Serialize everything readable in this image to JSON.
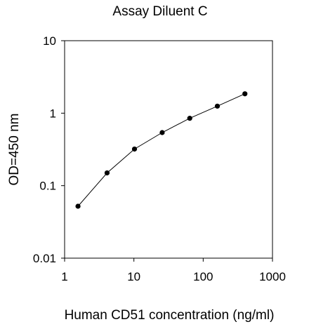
{
  "chart_data": {
    "type": "line",
    "title": "Assay Diluent C",
    "xlabel": "Human CD51 concentration (ng/ml)",
    "ylabel": "OD=450 nm",
    "xscale": "log",
    "yscale": "log",
    "xlim": [
      1,
      1000
    ],
    "ylim": [
      0.01,
      10
    ],
    "x_ticks": [
      1,
      10,
      100,
      1000
    ],
    "x_tick_labels": [
      "1",
      "10",
      "100",
      "1000"
    ],
    "y_ticks": [
      0.01,
      0.1,
      1,
      10
    ],
    "y_tick_labels": [
      "0.01",
      "0.1",
      "1",
      "10"
    ],
    "grid": false,
    "legend": "none",
    "series": [
      {
        "x": [
          1.56,
          4.1,
          10.2,
          25.6,
          64,
          160,
          400
        ],
        "y": [
          0.052,
          0.15,
          0.32,
          0.54,
          0.85,
          1.25,
          1.85
        ],
        "marker": "circle",
        "color": "#000000"
      }
    ]
  }
}
